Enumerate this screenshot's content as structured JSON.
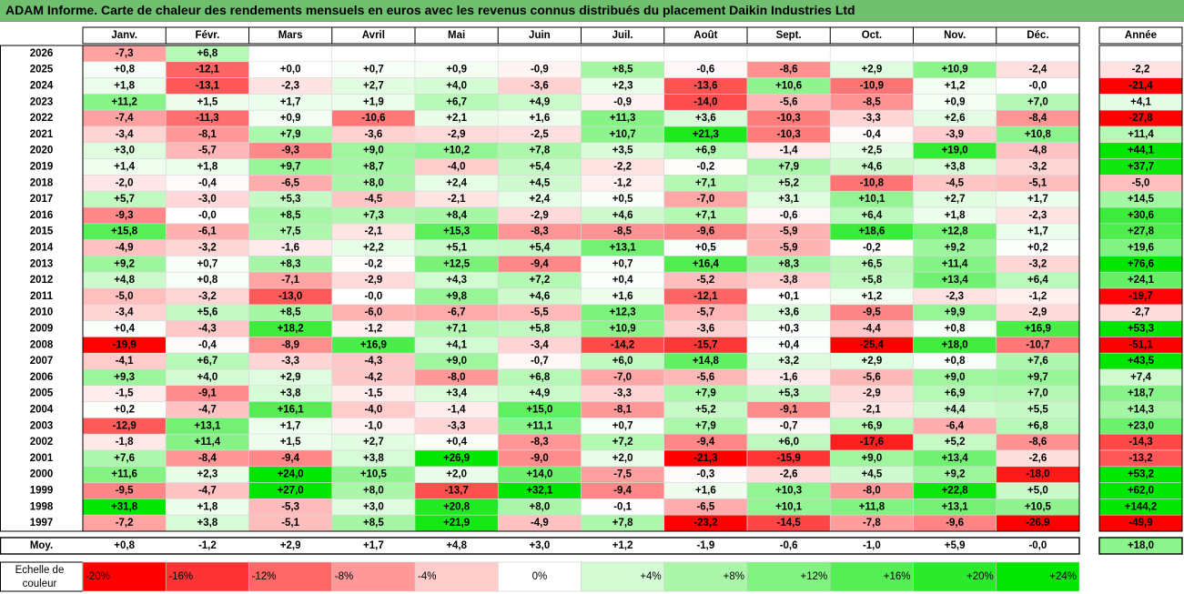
{
  "title": "ADAM Informe. Carte de chaleur des rendements mensuels en euros avec les revenus connus distribués du placement Daikin Industries Ltd",
  "chart_data": {
    "type": "heatmap",
    "months": [
      "Janv.",
      "Févr.",
      "Mars",
      "Avril",
      "Mai",
      "Juin",
      "Juil.",
      "Août",
      "Sept.",
      "Oct.",
      "Nov.",
      "Déc."
    ],
    "annual_label": "Année",
    "average_label": "Moy.",
    "rows": [
      {
        "year": "2026",
        "m": [
          -7.3,
          6.8,
          null,
          null,
          null,
          null,
          null,
          null,
          null,
          null,
          null,
          null
        ],
        "annual": null
      },
      {
        "year": "2025",
        "m": [
          0.8,
          -12.1,
          0.0,
          0.7,
          0.9,
          -0.9,
          8.5,
          -0.6,
          -8.6,
          2.9,
          10.9,
          -2.4
        ],
        "annual": -2.2
      },
      {
        "year": "2024",
        "m": [
          1.8,
          -13.1,
          -2.3,
          2.7,
          4.0,
          -3.6,
          2.3,
          -13.6,
          10.6,
          -10.9,
          1.2,
          -0.0
        ],
        "annual": -21.4
      },
      {
        "year": "2023",
        "m": [
          11.2,
          1.5,
          1.7,
          1.9,
          6.7,
          4.9,
          -0.9,
          -14.0,
          -5.6,
          -8.5,
          0.9,
          7.0
        ],
        "annual": 4.1
      },
      {
        "year": "2022",
        "m": [
          -7.4,
          -11.3,
          0.9,
          -10.6,
          2.1,
          1.6,
          11.3,
          3.6,
          -10.3,
          -3.3,
          2.6,
          -8.4
        ],
        "annual": -27.8
      },
      {
        "year": "2021",
        "m": [
          -3.4,
          -8.1,
          7.9,
          -3.6,
          -2.9,
          -2.5,
          10.7,
          21.3,
          -10.3,
          -0.4,
          -3.9,
          10.8
        ],
        "annual": 11.4
      },
      {
        "year": "2020",
        "m": [
          3.0,
          -5.7,
          -9.3,
          9.0,
          10.2,
          7.8,
          3.5,
          6.9,
          -1.4,
          2.5,
          19.0,
          -4.8
        ],
        "annual": 44.1
      },
      {
        "year": "2019",
        "m": [
          1.4,
          1.8,
          9.7,
          8.7,
          -4.0,
          5.4,
          -2.2,
          -0.2,
          7.9,
          4.6,
          3.8,
          -3.2
        ],
        "annual": 37.7
      },
      {
        "year": "2018",
        "m": [
          -2.0,
          -0.4,
          -6.5,
          8.0,
          2.4,
          4.5,
          -1.2,
          7.1,
          5.2,
          -10.8,
          -4.5,
          -5.1
        ],
        "annual": -5.0
      },
      {
        "year": "2017",
        "m": [
          5.7,
          -3.0,
          5.3,
          -4.5,
          -2.1,
          2.4,
          0.5,
          -7.0,
          3.1,
          10.1,
          2.7,
          1.7
        ],
        "annual": 14.5
      },
      {
        "year": "2016",
        "m": [
          -9.3,
          -0.0,
          8.5,
          7.3,
          8.4,
          -2.9,
          4.6,
          7.1,
          -0.6,
          6.4,
          1.8,
          -2.3
        ],
        "annual": 30.6
      },
      {
        "year": "2015",
        "m": [
          15.8,
          -6.1,
          7.5,
          -2.1,
          15.3,
          -8.3,
          -8.5,
          -9.6,
          -5.9,
          18.6,
          12.8,
          1.7
        ],
        "annual": 27.8
      },
      {
        "year": "2014",
        "m": [
          -4.9,
          -3.2,
          -1.6,
          2.2,
          5.1,
          5.4,
          13.1,
          0.5,
          -5.9,
          -0.2,
          9.2,
          0.2
        ],
        "annual": 19.6
      },
      {
        "year": "2013",
        "m": [
          9.2,
          0.7,
          8.3,
          -0.2,
          12.5,
          -9.4,
          0.7,
          16.4,
          8.3,
          6.5,
          11.4,
          -3.2
        ],
        "annual": 76.6
      },
      {
        "year": "2012",
        "m": [
          4.8,
          0.8,
          -7.1,
          -2.9,
          4.3,
          7.2,
          0.4,
          -5.2,
          -3.8,
          5.8,
          13.4,
          6.4
        ],
        "annual": 24.1
      },
      {
        "year": "2011",
        "m": [
          -5.0,
          -3.2,
          -13.0,
          -0.0,
          9.8,
          4.6,
          1.6,
          -12.1,
          0.1,
          1.2,
          -2.3,
          -1.2
        ],
        "annual": -19.7
      },
      {
        "year": "2010",
        "m": [
          -3.4,
          5.6,
          8.5,
          -6.0,
          -6.7,
          -5.5,
          12.3,
          -5.7,
          3.6,
          -9.5,
          9.9,
          -2.9
        ],
        "annual": -2.7
      },
      {
        "year": "2009",
        "m": [
          0.4,
          -4.3,
          18.2,
          -1.2,
          7.1,
          5.8,
          10.9,
          -3.6,
          0.3,
          -4.4,
          0.8,
          16.9
        ],
        "annual": 53.3
      },
      {
        "year": "2008",
        "m": [
          -19.9,
          -0.4,
          -8.9,
          16.9,
          4.1,
          -3.4,
          -14.2,
          -15.7,
          0.4,
          -25.4,
          18.0,
          -10.7
        ],
        "annual": -51.1
      },
      {
        "year": "2007",
        "m": [
          -4.1,
          6.7,
          -3.3,
          -4.3,
          9.0,
          -0.7,
          6.0,
          14.8,
          3.2,
          2.9,
          0.8,
          7.6
        ],
        "annual": 43.5
      },
      {
        "year": "2006",
        "m": [
          9.3,
          4.0,
          2.9,
          -4.2,
          -8.0,
          6.8,
          -7.0,
          -5.6,
          -1.6,
          -5.6,
          9.0,
          9.7
        ],
        "annual": 7.4
      },
      {
        "year": "2005",
        "m": [
          -1.5,
          -9.1,
          3.8,
          -1.5,
          3.4,
          4.9,
          -3.3,
          7.9,
          5.3,
          -2.9,
          6.9,
          7.0
        ],
        "annual": 18.7
      },
      {
        "year": "2004",
        "m": [
          0.2,
          -4.7,
          16.1,
          -4.0,
          -1.4,
          15.0,
          -8.1,
          5.2,
          -9.1,
          -2.1,
          4.4,
          5.5
        ],
        "annual": 14.3
      },
      {
        "year": "2003",
        "m": [
          -12.9,
          13.1,
          1.7,
          -1.0,
          -3.3,
          11.1,
          0.7,
          7.9,
          -0.7,
          6.9,
          -6.4,
          6.8
        ],
        "annual": 23.0
      },
      {
        "year": "2002",
        "m": [
          -1.8,
          11.4,
          1.5,
          2.7,
          0.4,
          -8.3,
          7.2,
          -9.4,
          6.0,
          -17.6,
          5.2,
          -8.6
        ],
        "annual": -14.3
      },
      {
        "year": "2001",
        "m": [
          7.6,
          -8.4,
          -9.4,
          3.8,
          26.9,
          -9.0,
          2.0,
          -21.3,
          -15.9,
          9.0,
          13.4,
          -2.6
        ],
        "annual": -13.2
      },
      {
        "year": "2000",
        "m": [
          11.6,
          2.3,
          24.0,
          10.5,
          2.0,
          14.0,
          -7.5,
          -0.3,
          -2.6,
          4.5,
          9.2,
          -18.0
        ],
        "annual": 53.2
      },
      {
        "year": "1999",
        "m": [
          -9.5,
          -4.7,
          27.0,
          8.0,
          -13.7,
          32.1,
          -9.4,
          1.6,
          10.3,
          -8.0,
          22.8,
          5.0
        ],
        "annual": 62.0
      },
      {
        "year": "1998",
        "m": [
          31.8,
          1.8,
          -5.3,
          3.0,
          20.8,
          8.0,
          -0.1,
          -6.5,
          10.1,
          11.8,
          13.1,
          10.5
        ],
        "annual": 144.2
      },
      {
        "year": "1997",
        "m": [
          -7.2,
          3.8,
          -5.1,
          8.5,
          21.9,
          -4.9,
          7.8,
          -23.2,
          -14.5,
          -7.8,
          -9.6,
          -26.9
        ],
        "annual": -49.9
      }
    ],
    "average": {
      "m": [
        0.8,
        -1.2,
        2.9,
        1.7,
        4.8,
        3.0,
        1.2,
        -1.9,
        -0.6,
        -1.0,
        5.9,
        -0.0
      ],
      "annual": 18.0
    },
    "legend": {
      "label_line1": "Echelle de",
      "label_line2": "couleur",
      "stops": [
        "-20%",
        "-16%",
        "-12%",
        "-8%",
        "-4%",
        "0%",
        "+4%",
        "+8%",
        "+12%",
        "+16%",
        "+20%",
        "+24%"
      ]
    },
    "colors": {
      "neg_full": "#ff0000",
      "pos_full": "#00e600",
      "neutral": "#ffffff",
      "title_bg": "#6fbf6f"
    }
  }
}
